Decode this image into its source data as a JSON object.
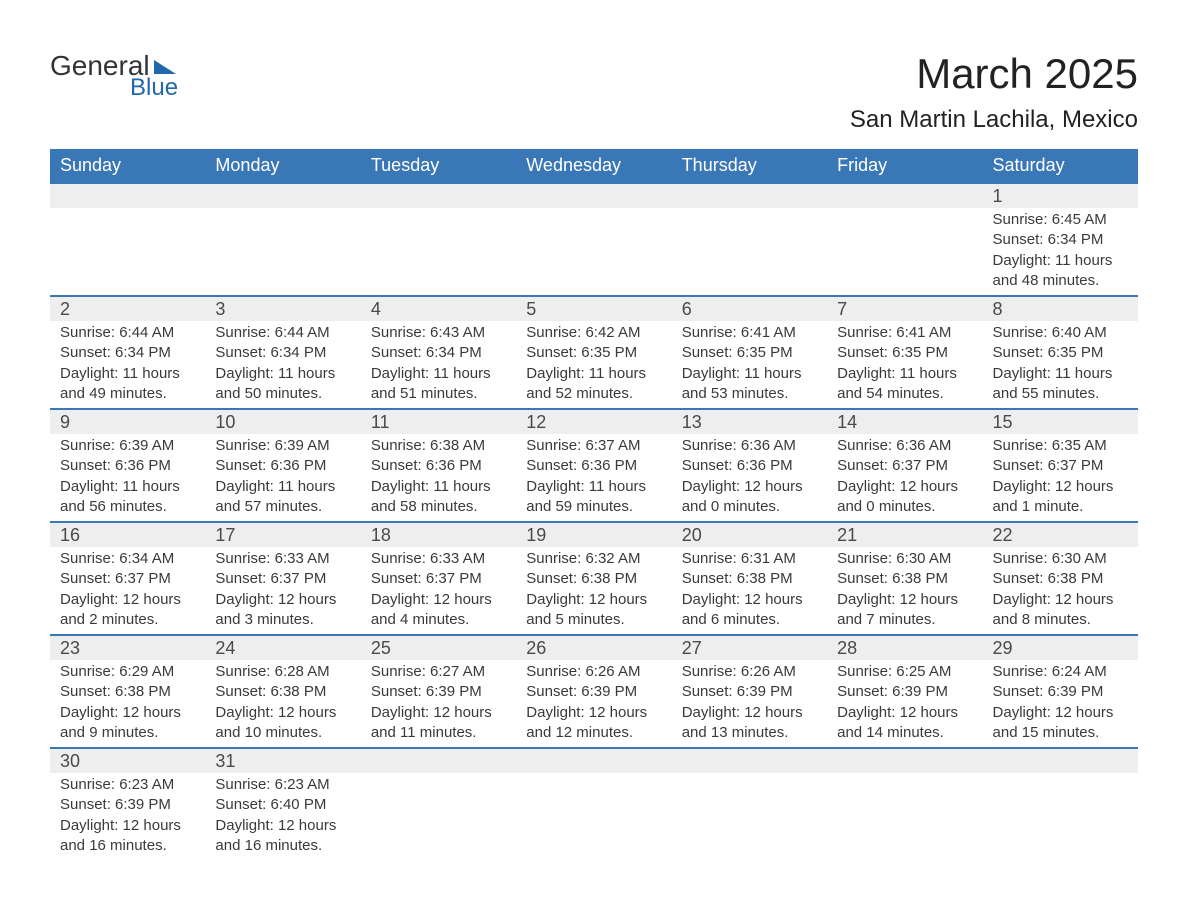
{
  "logo": {
    "text_general": "General",
    "text_blue": "Blue"
  },
  "title": {
    "month": "March 2025",
    "location": "San Martin Lachila, Mexico"
  },
  "weekdays": [
    "Sunday",
    "Monday",
    "Tuesday",
    "Wednesday",
    "Thursday",
    "Friday",
    "Saturday"
  ],
  "colors": {
    "header_bg": "#3a77b7",
    "header_text": "#ffffff",
    "num_bar_bg": "#eeeeee",
    "text": "#3a3a3a",
    "border": "#3a77b7",
    "logo_blue": "#2167ab"
  },
  "weeks": [
    [
      null,
      null,
      null,
      null,
      null,
      null,
      {
        "num": "1",
        "sunrise": "Sunrise: 6:45 AM",
        "sunset": "Sunset: 6:34 PM",
        "daylight1": "Daylight: 11 hours",
        "daylight2": "and 48 minutes."
      }
    ],
    [
      {
        "num": "2",
        "sunrise": "Sunrise: 6:44 AM",
        "sunset": "Sunset: 6:34 PM",
        "daylight1": "Daylight: 11 hours",
        "daylight2": "and 49 minutes."
      },
      {
        "num": "3",
        "sunrise": "Sunrise: 6:44 AM",
        "sunset": "Sunset: 6:34 PM",
        "daylight1": "Daylight: 11 hours",
        "daylight2": "and 50 minutes."
      },
      {
        "num": "4",
        "sunrise": "Sunrise: 6:43 AM",
        "sunset": "Sunset: 6:34 PM",
        "daylight1": "Daylight: 11 hours",
        "daylight2": "and 51 minutes."
      },
      {
        "num": "5",
        "sunrise": "Sunrise: 6:42 AM",
        "sunset": "Sunset: 6:35 PM",
        "daylight1": "Daylight: 11 hours",
        "daylight2": "and 52 minutes."
      },
      {
        "num": "6",
        "sunrise": "Sunrise: 6:41 AM",
        "sunset": "Sunset: 6:35 PM",
        "daylight1": "Daylight: 11 hours",
        "daylight2": "and 53 minutes."
      },
      {
        "num": "7",
        "sunrise": "Sunrise: 6:41 AM",
        "sunset": "Sunset: 6:35 PM",
        "daylight1": "Daylight: 11 hours",
        "daylight2": "and 54 minutes."
      },
      {
        "num": "8",
        "sunrise": "Sunrise: 6:40 AM",
        "sunset": "Sunset: 6:35 PM",
        "daylight1": "Daylight: 11 hours",
        "daylight2": "and 55 minutes."
      }
    ],
    [
      {
        "num": "9",
        "sunrise": "Sunrise: 6:39 AM",
        "sunset": "Sunset: 6:36 PM",
        "daylight1": "Daylight: 11 hours",
        "daylight2": "and 56 minutes."
      },
      {
        "num": "10",
        "sunrise": "Sunrise: 6:39 AM",
        "sunset": "Sunset: 6:36 PM",
        "daylight1": "Daylight: 11 hours",
        "daylight2": "and 57 minutes."
      },
      {
        "num": "11",
        "sunrise": "Sunrise: 6:38 AM",
        "sunset": "Sunset: 6:36 PM",
        "daylight1": "Daylight: 11 hours",
        "daylight2": "and 58 minutes."
      },
      {
        "num": "12",
        "sunrise": "Sunrise: 6:37 AM",
        "sunset": "Sunset: 6:36 PM",
        "daylight1": "Daylight: 11 hours",
        "daylight2": "and 59 minutes."
      },
      {
        "num": "13",
        "sunrise": "Sunrise: 6:36 AM",
        "sunset": "Sunset: 6:36 PM",
        "daylight1": "Daylight: 12 hours",
        "daylight2": "and 0 minutes."
      },
      {
        "num": "14",
        "sunrise": "Sunrise: 6:36 AM",
        "sunset": "Sunset: 6:37 PM",
        "daylight1": "Daylight: 12 hours",
        "daylight2": "and 0 minutes."
      },
      {
        "num": "15",
        "sunrise": "Sunrise: 6:35 AM",
        "sunset": "Sunset: 6:37 PM",
        "daylight1": "Daylight: 12 hours",
        "daylight2": "and 1 minute."
      }
    ],
    [
      {
        "num": "16",
        "sunrise": "Sunrise: 6:34 AM",
        "sunset": "Sunset: 6:37 PM",
        "daylight1": "Daylight: 12 hours",
        "daylight2": "and 2 minutes."
      },
      {
        "num": "17",
        "sunrise": "Sunrise: 6:33 AM",
        "sunset": "Sunset: 6:37 PM",
        "daylight1": "Daylight: 12 hours",
        "daylight2": "and 3 minutes."
      },
      {
        "num": "18",
        "sunrise": "Sunrise: 6:33 AM",
        "sunset": "Sunset: 6:37 PM",
        "daylight1": "Daylight: 12 hours",
        "daylight2": "and 4 minutes."
      },
      {
        "num": "19",
        "sunrise": "Sunrise: 6:32 AM",
        "sunset": "Sunset: 6:38 PM",
        "daylight1": "Daylight: 12 hours",
        "daylight2": "and 5 minutes."
      },
      {
        "num": "20",
        "sunrise": "Sunrise: 6:31 AM",
        "sunset": "Sunset: 6:38 PM",
        "daylight1": "Daylight: 12 hours",
        "daylight2": "and 6 minutes."
      },
      {
        "num": "21",
        "sunrise": "Sunrise: 6:30 AM",
        "sunset": "Sunset: 6:38 PM",
        "daylight1": "Daylight: 12 hours",
        "daylight2": "and 7 minutes."
      },
      {
        "num": "22",
        "sunrise": "Sunrise: 6:30 AM",
        "sunset": "Sunset: 6:38 PM",
        "daylight1": "Daylight: 12 hours",
        "daylight2": "and 8 minutes."
      }
    ],
    [
      {
        "num": "23",
        "sunrise": "Sunrise: 6:29 AM",
        "sunset": "Sunset: 6:38 PM",
        "daylight1": "Daylight: 12 hours",
        "daylight2": "and 9 minutes."
      },
      {
        "num": "24",
        "sunrise": "Sunrise: 6:28 AM",
        "sunset": "Sunset: 6:38 PM",
        "daylight1": "Daylight: 12 hours",
        "daylight2": "and 10 minutes."
      },
      {
        "num": "25",
        "sunrise": "Sunrise: 6:27 AM",
        "sunset": "Sunset: 6:39 PM",
        "daylight1": "Daylight: 12 hours",
        "daylight2": "and 11 minutes."
      },
      {
        "num": "26",
        "sunrise": "Sunrise: 6:26 AM",
        "sunset": "Sunset: 6:39 PM",
        "daylight1": "Daylight: 12 hours",
        "daylight2": "and 12 minutes."
      },
      {
        "num": "27",
        "sunrise": "Sunrise: 6:26 AM",
        "sunset": "Sunset: 6:39 PM",
        "daylight1": "Daylight: 12 hours",
        "daylight2": "and 13 minutes."
      },
      {
        "num": "28",
        "sunrise": "Sunrise: 6:25 AM",
        "sunset": "Sunset: 6:39 PM",
        "daylight1": "Daylight: 12 hours",
        "daylight2": "and 14 minutes."
      },
      {
        "num": "29",
        "sunrise": "Sunrise: 6:24 AM",
        "sunset": "Sunset: 6:39 PM",
        "daylight1": "Daylight: 12 hours",
        "daylight2": "and 15 minutes."
      }
    ],
    [
      {
        "num": "30",
        "sunrise": "Sunrise: 6:23 AM",
        "sunset": "Sunset: 6:39 PM",
        "daylight1": "Daylight: 12 hours",
        "daylight2": "and 16 minutes."
      },
      {
        "num": "31",
        "sunrise": "Sunrise: 6:23 AM",
        "sunset": "Sunset: 6:40 PM",
        "daylight1": "Daylight: 12 hours",
        "daylight2": "and 16 minutes."
      },
      null,
      null,
      null,
      null,
      null
    ]
  ]
}
